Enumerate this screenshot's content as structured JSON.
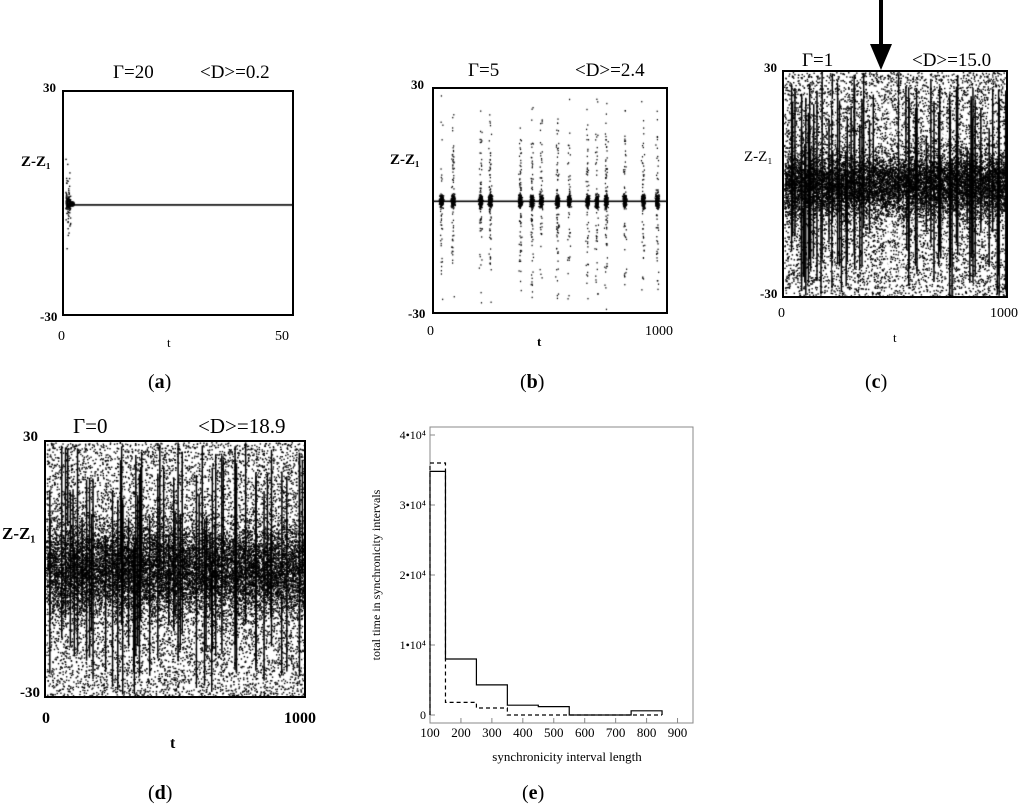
{
  "panels": [
    {
      "id": "a",
      "gamma_label": "Γ=20",
      "mean_label": "<D>=0.2",
      "ylabel": "Z-Z₁",
      "xlabel": "t",
      "y_ticks": [
        "30",
        "-30"
      ],
      "x_ticks": [
        "0",
        "50"
      ],
      "caption_letter": "a",
      "chart_data": {
        "type": "scatter",
        "x_range": [
          0,
          50
        ],
        "y_range": [
          -30,
          30
        ],
        "gamma": 20,
        "mean_D": 0.2,
        "behavior": "synchronized after brief transient"
      }
    },
    {
      "id": "b",
      "gamma_label": "Γ=5",
      "mean_label": "<D>=2.4",
      "ylabel": "Z-Z₁",
      "xlabel": "t",
      "y_ticks": [
        "30",
        "-30"
      ],
      "x_ticks": [
        "0",
        "1000"
      ],
      "caption_letter": "b",
      "chart_data": {
        "type": "scatter",
        "x_range": [
          0,
          1000
        ],
        "y_range": [
          -30,
          30
        ],
        "gamma": 5,
        "mean_D": 2.4,
        "behavior": "intermittent bursts"
      }
    },
    {
      "id": "c",
      "gamma_label": "Γ=1",
      "mean_label": "<D>=15.0",
      "ylabel": "Z-Z₁",
      "xlabel": "t",
      "y_ticks": [
        "30",
        "-30"
      ],
      "x_ticks": [
        "0",
        "1000"
      ],
      "caption_letter": "c",
      "chart_data": {
        "type": "scatter",
        "x_range": [
          0,
          1000
        ],
        "y_range": [
          -30,
          30
        ],
        "gamma": 1,
        "mean_D": 15.0,
        "behavior": "mostly desynchronized"
      }
    },
    {
      "id": "d",
      "gamma_label": "Γ=0",
      "mean_label": "<D>=18.9",
      "ylabel": "Z-Z₁",
      "xlabel": "t",
      "y_ticks": [
        "30",
        "-30"
      ],
      "x_ticks": [
        "0",
        "1000"
      ],
      "caption_letter": "d",
      "chart_data": {
        "type": "scatter",
        "x_range": [
          0,
          1000
        ],
        "y_range": [
          -30,
          30
        ],
        "gamma": 0,
        "mean_D": 18.9,
        "behavior": "fully desynchronized"
      }
    }
  ],
  "histogram": {
    "caption_letter": "e",
    "chart_data": {
      "type": "bar",
      "xlabel": "synchronicity interval length",
      "ylabel": "total time in synchronicity intervals",
      "x_ticks": [
        100,
        200,
        300,
        400,
        500,
        600,
        700,
        800,
        900
      ],
      "xlim": [
        100,
        950
      ],
      "ylim": [
        0,
        40000
      ],
      "y_ticks": [
        {
          "value": 0,
          "label": "0"
        },
        {
          "value": 10000,
          "label": "1•10⁴"
        },
        {
          "value": 20000,
          "label": "2•10⁴"
        },
        {
          "value": 30000,
          "label": "3•10⁴"
        },
        {
          "value": 40000,
          "label": "4•10⁴"
        }
      ],
      "series": [
        {
          "style": "solid",
          "bins": [
            [
              100,
              150
            ],
            [
              150,
              250
            ],
            [
              250,
              350
            ],
            [
              350,
              450
            ],
            [
              450,
              550
            ],
            [
              550,
              750
            ],
            [
              750,
              850
            ]
          ],
          "values": [
            34800,
            8000,
            4300,
            1400,
            1200,
            0,
            600
          ]
        },
        {
          "style": "dashed",
          "bins": [
            [
              100,
              150
            ],
            [
              150,
              250
            ],
            [
              250,
              350
            ],
            [
              350,
              450
            ],
            [
              450,
              550
            ],
            [
              550,
              750
            ],
            [
              750,
              850
            ]
          ],
          "values": [
            36000,
            1800,
            1000,
            0,
            0,
            0,
            0
          ]
        }
      ]
    }
  }
}
